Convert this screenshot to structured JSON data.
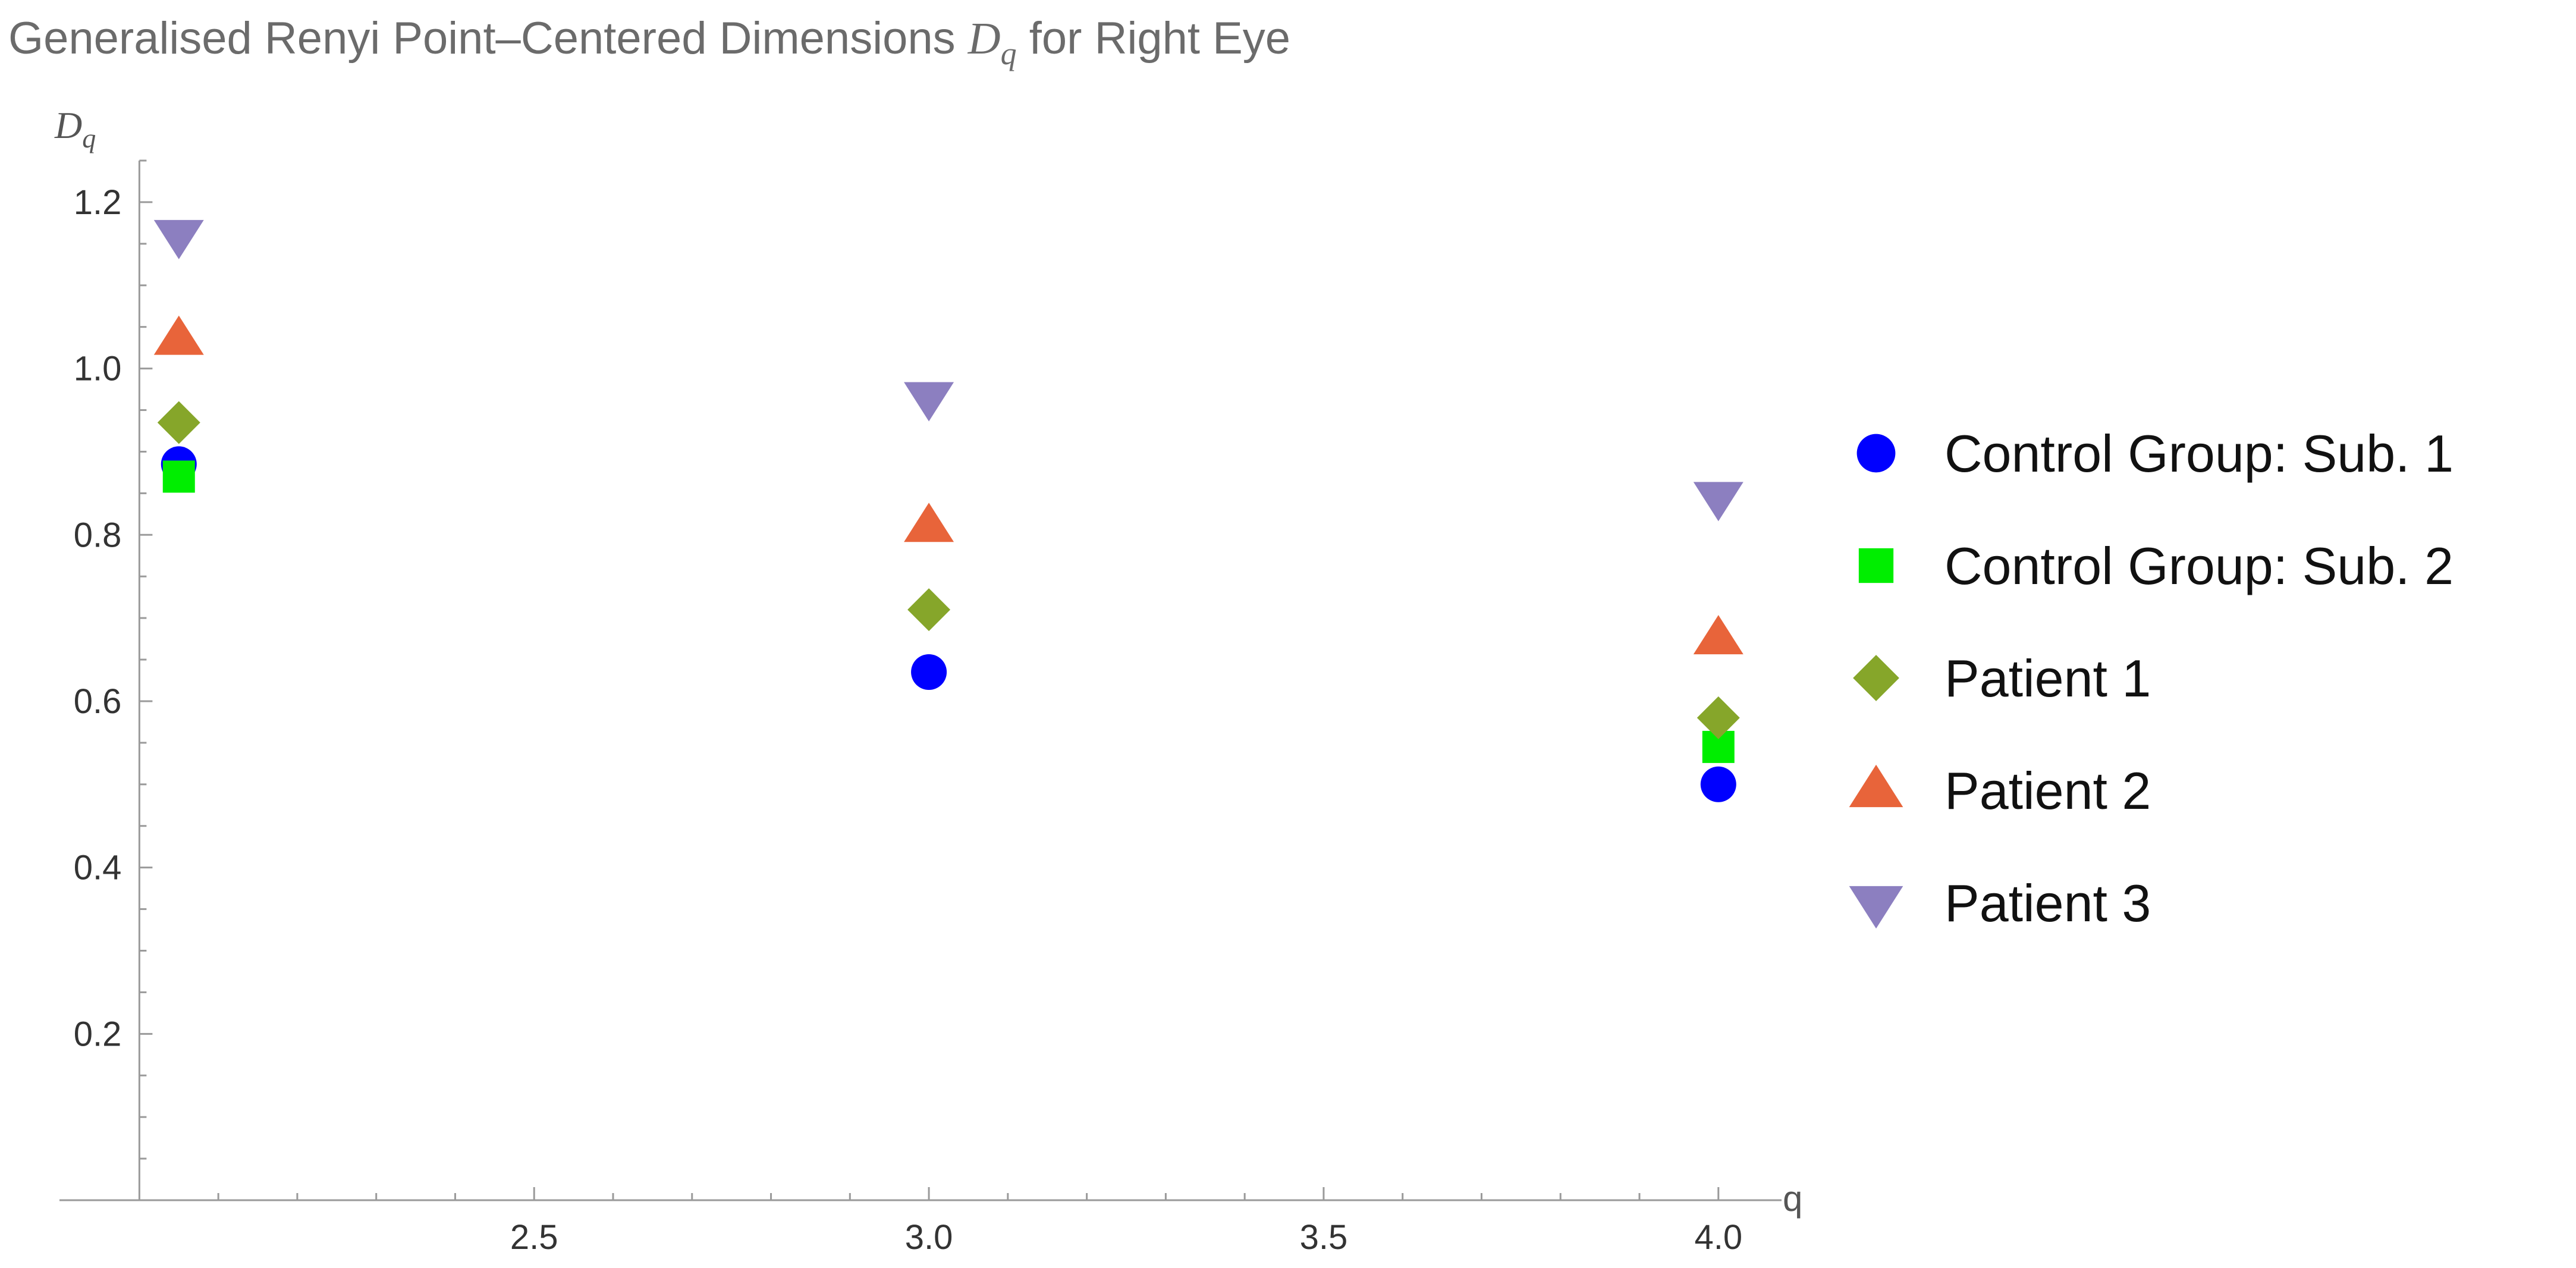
{
  "chart_data": {
    "type": "scatter",
    "title": {
      "pre": "Generalised Renyi Point–Centered Dimensions ",
      "sym": "D",
      "sub": "q",
      "post": " for Right Eye"
    },
    "ylabel": {
      "sym": "D",
      "sub": "q"
    },
    "xlabel": "q",
    "xlim": [
      1.95,
      4.08
    ],
    "ylim": [
      0,
      1.25
    ],
    "x_ticks": [
      2.5,
      3.0,
      3.5,
      4.0
    ],
    "x_tick_labels": [
      "2.5",
      "3.0",
      "3.5",
      "4.0"
    ],
    "y_ticks": [
      0.2,
      0.4,
      0.6,
      0.8,
      1.0,
      1.2
    ],
    "y_tick_labels": [
      "0.2",
      "0.4",
      "0.6",
      "0.8",
      "1.0",
      "1.2"
    ],
    "grid": false,
    "legend_position": "right",
    "series": [
      {
        "name": "Control Group: Sub. 1",
        "marker": "circle",
        "color": "#0000ff",
        "x": [
          2,
          3,
          4
        ],
        "y": [
          0.885,
          0.635,
          0.5
        ]
      },
      {
        "name": "Control Group: Sub. 2",
        "marker": "square",
        "color": "#00ee00",
        "x": [
          2,
          4
        ],
        "y": [
          0.87,
          0.545
        ]
      },
      {
        "name": "Patient 1",
        "marker": "diamond",
        "color": "#86a62a",
        "x": [
          2,
          3,
          4
        ],
        "y": [
          0.935,
          0.71,
          0.58
        ]
      },
      {
        "name": "Patient 2",
        "marker": "triangle-up",
        "color": "#e8643a",
        "x": [
          2,
          3,
          4
        ],
        "y": [
          1.035,
          0.81,
          0.675
        ]
      },
      {
        "name": "Patient 3",
        "marker": "triangle-down",
        "color": "#8c7fc0",
        "x": [
          2,
          3,
          4
        ],
        "y": [
          1.16,
          0.965,
          0.845
        ]
      }
    ]
  }
}
